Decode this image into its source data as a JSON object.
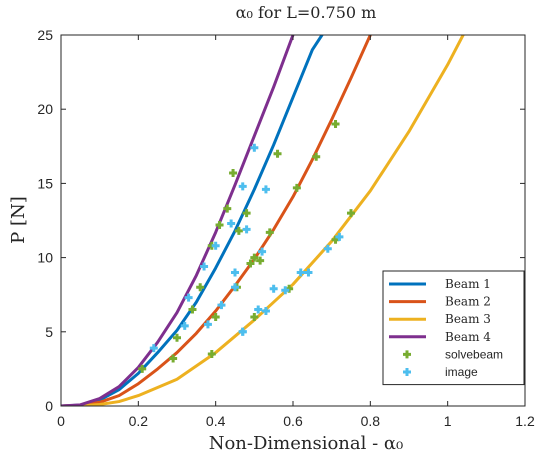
{
  "chart_data": {
    "type": "line",
    "title": "α₀ for L=0.750 m",
    "xlabel": "Non-Dimensional - α₀",
    "ylabel": "P [N]",
    "xlim": [
      0,
      1.2
    ],
    "ylim": [
      0,
      25
    ],
    "xticks": [
      0,
      0.2,
      0.4,
      0.6,
      0.8,
      1,
      1.2
    ],
    "xtick_labels": [
      "0",
      "0.2",
      "0.4",
      "0.6",
      "0.8",
      "1",
      "1.2"
    ],
    "yticks": [
      0,
      5,
      10,
      15,
      20,
      25
    ],
    "ytick_labels": [
      "0",
      "5",
      "10",
      "15",
      "20",
      "25"
    ],
    "grid": false,
    "legend_position": "bottom-right",
    "series": [
      {
        "name": "Beam 1",
        "kind": "line",
        "color": "#0072BD",
        "x": [
          0,
          0.05,
          0.1,
          0.15,
          0.2,
          0.25,
          0.3,
          0.35,
          0.4,
          0.45,
          0.5,
          0.55,
          0.6,
          0.65,
          0.675
        ],
        "y": [
          0,
          0.06,
          0.4,
          1.1,
          2.2,
          3.6,
          5.1,
          7.0,
          9.3,
          11.8,
          14.6,
          17.6,
          20.8,
          24.0,
          25.0
        ]
      },
      {
        "name": "Beam 2",
        "kind": "line",
        "color": "#D95319",
        "x": [
          0,
          0.05,
          0.1,
          0.15,
          0.2,
          0.25,
          0.3,
          0.35,
          0.4,
          0.45,
          0.5,
          0.55,
          0.6,
          0.65,
          0.7,
          0.75,
          0.8
        ],
        "y": [
          0,
          0.04,
          0.25,
          0.7,
          1.5,
          2.5,
          3.6,
          4.9,
          6.4,
          8.1,
          9.9,
          11.9,
          14.1,
          16.6,
          19.3,
          22.1,
          25.0
        ]
      },
      {
        "name": "Beam 3",
        "kind": "line",
        "color": "#EDB120",
        "x": [
          0,
          0.05,
          0.1,
          0.15,
          0.2,
          0.3,
          0.4,
          0.5,
          0.6,
          0.7,
          0.8,
          0.9,
          1.0,
          1.04
        ],
        "y": [
          0,
          0.02,
          0.1,
          0.3,
          0.7,
          1.8,
          3.6,
          5.8,
          8.2,
          11.1,
          14.5,
          18.5,
          23.0,
          25.0
        ]
      },
      {
        "name": "Beam 4",
        "kind": "line",
        "color": "#7E2F8E",
        "x": [
          0,
          0.05,
          0.1,
          0.15,
          0.2,
          0.25,
          0.3,
          0.35,
          0.4,
          0.45,
          0.5,
          0.55,
          0.6
        ],
        "y": [
          0,
          0.08,
          0.5,
          1.3,
          2.6,
          4.3,
          6.3,
          8.8,
          11.7,
          14.9,
          18.2,
          21.5,
          25.0
        ]
      },
      {
        "name": "solvebeam",
        "kind": "marker",
        "color": "#77AC30",
        "x": [
          0.21,
          0.29,
          0.34,
          0.36,
          0.39,
          0.41,
          0.43,
          0.445,
          0.46,
          0.48,
          0.49,
          0.515,
          0.56,
          0.3,
          0.4,
          0.455,
          0.5,
          0.54,
          0.61,
          0.66,
          0.71,
          0.39,
          0.5,
          0.59,
          0.71,
          0.75
        ],
        "y": [
          2.5,
          3.2,
          6.5,
          8.0,
          10.8,
          12.2,
          13.3,
          15.7,
          11.8,
          13.0,
          9.6,
          9.8,
          17.0,
          4.6,
          6.0,
          8.0,
          10.0,
          11.7,
          14.7,
          16.8,
          19.0,
          3.5,
          6.0,
          7.9,
          11.2,
          13.0
        ]
      },
      {
        "name": "image",
        "kind": "marker",
        "color": "#4DBEEE",
        "x": [
          0.24,
          0.32,
          0.33,
          0.37,
          0.38,
          0.4,
          0.415,
          0.44,
          0.45,
          0.47,
          0.48,
          0.5,
          0.52,
          0.53,
          0.45,
          0.47,
          0.51,
          0.55,
          0.62,
          0.47,
          0.53,
          0.58,
          0.64,
          0.69,
          0.72
        ],
        "y": [
          3.9,
          5.4,
          7.3,
          9.4,
          5.5,
          10.8,
          6.8,
          12.3,
          9.0,
          14.8,
          11.9,
          17.4,
          10.4,
          14.6,
          8.0,
          5.0,
          6.5,
          7.9,
          9.0,
          5.0,
          6.4,
          7.8,
          9.0,
          10.6,
          11.4
        ]
      }
    ]
  }
}
